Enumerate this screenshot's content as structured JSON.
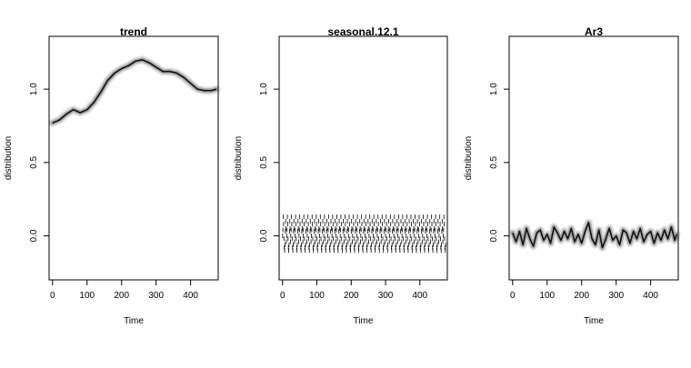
{
  "chart_data": [
    {
      "type": "line",
      "title": "trend",
      "xlabel": "Time",
      "ylabel": "distribution",
      "xlim": [
        -10,
        480
      ],
      "ylim": [
        -0.3,
        1.36
      ],
      "xticks": [
        0,
        100,
        200,
        300,
        400
      ],
      "xtick_labels": [
        "0",
        "100",
        "200",
        "300",
        "400"
      ],
      "yticks": [
        0.0,
        0.5,
        1.0
      ],
      "ytick_labels": [
        "0.0",
        "0.5",
        "1.0"
      ],
      "grid": false,
      "series": [
        {
          "x": [
            0,
            20,
            40,
            60,
            80,
            100,
            120,
            140,
            160,
            180,
            200,
            220,
            240,
            260,
            280,
            300,
            320,
            340,
            360,
            380,
            400,
            420,
            440,
            460,
            475
          ],
          "y": [
            0.77,
            0.79,
            0.83,
            0.86,
            0.84,
            0.86,
            0.91,
            0.98,
            1.06,
            1.11,
            1.14,
            1.16,
            1.19,
            1.2,
            1.18,
            1.15,
            1.12,
            1.12,
            1.11,
            1.08,
            1.04,
            1.0,
            0.99,
            0.99,
            1.0
          ]
        }
      ]
    },
    {
      "type": "scatter",
      "title": "seasonal.12.1",
      "xlabel": "Time",
      "ylabel": "distribution",
      "xlim": [
        -10,
        480
      ],
      "ylim": [
        -0.3,
        1.36
      ],
      "xticks": [
        0,
        100,
        200,
        300,
        400
      ],
      "xtick_labels": [
        "0",
        "100",
        "200",
        "300",
        "400"
      ],
      "yticks": [
        0.0,
        0.5,
        1.0
      ],
      "ytick_labels": [
        "0.0",
        "0.5",
        "1.0"
      ],
      "grid": false,
      "period": 12,
      "cycle_values": [
        0.0,
        0.04,
        0.13,
        0.08,
        -0.02,
        -0.08,
        -0.1,
        -0.06,
        0.03,
        0.1,
        0.05,
        -0.04
      ],
      "n_points": 476
    },
    {
      "type": "line",
      "title": "Ar3",
      "xlabel": "Time",
      "ylabel": "distribution",
      "xlim": [
        -10,
        480
      ],
      "ylim": [
        -0.3,
        1.36
      ],
      "xticks": [
        0,
        100,
        200,
        300,
        400
      ],
      "xtick_labels": [
        "0",
        "100",
        "200",
        "300",
        "400"
      ],
      "yticks": [
        0.0,
        0.5,
        1.0
      ],
      "ytick_labels": [
        "0.0",
        "0.5",
        "1.0"
      ],
      "grid": false,
      "series": [
        {
          "x": [
            0,
            10,
            20,
            30,
            40,
            50,
            60,
            70,
            80,
            90,
            100,
            110,
            120,
            130,
            140,
            150,
            160,
            170,
            180,
            190,
            200,
            210,
            220,
            230,
            240,
            250,
            260,
            270,
            280,
            290,
            300,
            310,
            320,
            330,
            340,
            350,
            360,
            370,
            380,
            390,
            400,
            410,
            420,
            430,
            440,
            450,
            460,
            470,
            475
          ],
          "y": [
            0.02,
            -0.04,
            0.03,
            -0.06,
            0.05,
            -0.02,
            -0.07,
            0.02,
            0.04,
            -0.03,
            0.01,
            -0.05,
            0.06,
            0.02,
            -0.03,
            0.03,
            -0.02,
            0.05,
            -0.04,
            0.01,
            -0.05,
            0.03,
            0.09,
            -0.02,
            -0.06,
            0.04,
            -0.08,
            -0.02,
            0.05,
            -0.03,
            0.0,
            -0.06,
            0.04,
            0.02,
            -0.05,
            0.03,
            -0.02,
            0.05,
            -0.04,
            0.01,
            0.03,
            -0.05,
            0.02,
            -0.03,
            0.04,
            -0.02,
            0.06,
            -0.03,
            0.01
          ]
        }
      ]
    }
  ]
}
